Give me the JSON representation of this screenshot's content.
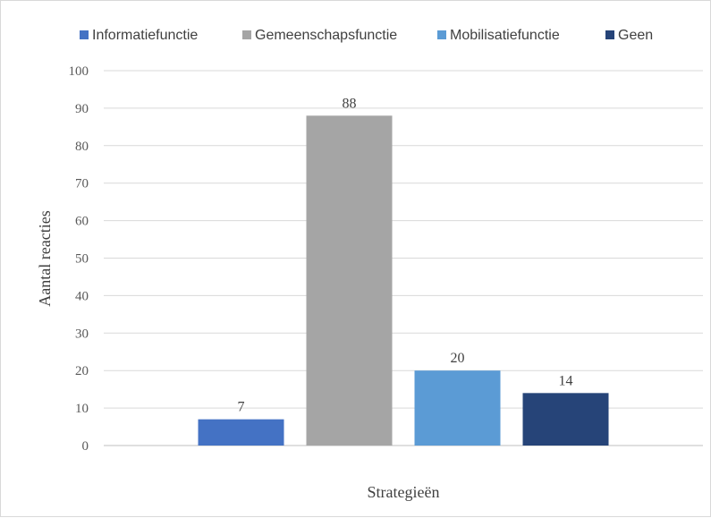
{
  "chart_data": {
    "type": "bar",
    "xlabel": "Strategieën",
    "ylabel": "Aantal reacties",
    "ylim": [
      0,
      100
    ],
    "ytick_step": 10,
    "grid": true,
    "legend_position": "top",
    "series": [
      {
        "name": "Informatiefunctie",
        "value": 7,
        "color": "#4472C4"
      },
      {
        "name": "Gemeenschapsfunctie",
        "value": 88,
        "color": "#A5A5A5"
      },
      {
        "name": "Mobilisatiefunctie",
        "value": 20,
        "color": "#5B9BD5"
      },
      {
        "name": "Geen",
        "value": 14,
        "color": "#264478"
      }
    ]
  }
}
